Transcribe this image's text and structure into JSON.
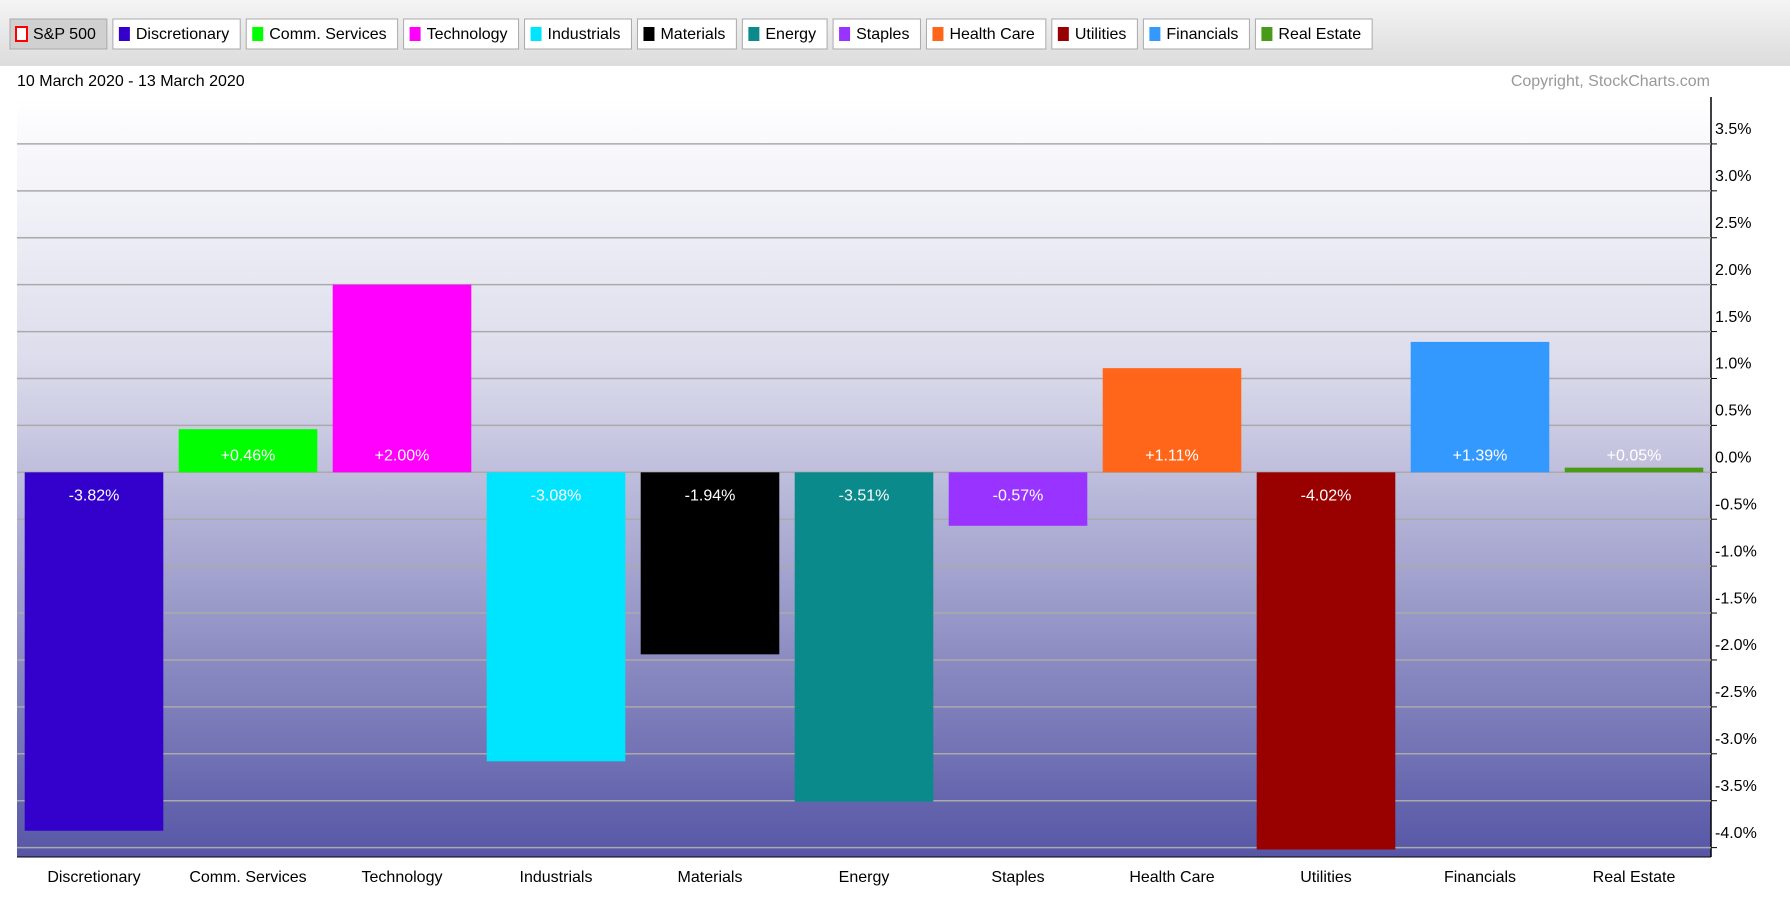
{
  "chart_data": {
    "type": "bar",
    "subtitle": "10 March 2020 - 13 March 2020",
    "annotation": "Copyright, StockCharts.com",
    "legend": [
      {
        "name": "S&P 500",
        "color": "#ff0000"
      },
      {
        "name": "Discretionary",
        "color": "#3300cc"
      },
      {
        "name": "Comm. Services",
        "color": "#00ff00"
      },
      {
        "name": "Technology",
        "color": "#ff00ff"
      },
      {
        "name": "Industrials",
        "color": "#00e5ff"
      },
      {
        "name": "Materials",
        "color": "#000000"
      },
      {
        "name": "Energy",
        "color": "#0a8a8a"
      },
      {
        "name": "Staples",
        "color": "#9933ff"
      },
      {
        "name": "Health Care",
        "color": "#ff6619"
      },
      {
        "name": "Utilities",
        "color": "#990000"
      },
      {
        "name": "Financials",
        "color": "#3399ff"
      },
      {
        "name": "Real Estate",
        "color": "#4a9a1a"
      }
    ],
    "categories": [
      "Discretionary",
      "Comm. Services",
      "Technology",
      "Industrials",
      "Materials",
      "Energy",
      "Staples",
      "Health Care",
      "Utilities",
      "Financials",
      "Real Estate"
    ],
    "values": [
      -3.82,
      0.46,
      2.0,
      -3.08,
      -1.94,
      -3.51,
      -0.57,
      1.11,
      -4.02,
      1.39,
      0.05
    ],
    "value_labels": [
      "-3.82%",
      "+0.46%",
      "+2.00%",
      "-3.08%",
      "-1.94%",
      "-3.51%",
      "-0.57%",
      "+1.11%",
      "-4.02%",
      "+1.39%",
      "+0.05%"
    ],
    "colors": [
      "#3300cc",
      "#00ff00",
      "#ff00ff",
      "#00e5ff",
      "#000000",
      "#0a8a8a",
      "#9933ff",
      "#ff6619",
      "#990000",
      "#3399ff",
      "#4a9a1a"
    ],
    "ylim": [
      -4.1,
      4.0
    ],
    "yticks": [
      {
        "value": 3.5,
        "label": "3.5%"
      },
      {
        "value": 3.0,
        "label": "3.0%"
      },
      {
        "value": 2.5,
        "label": "2.5%"
      },
      {
        "value": 2.0,
        "label": "2.0%"
      },
      {
        "value": 1.5,
        "label": "1.5%"
      },
      {
        "value": 1.0,
        "label": "1.0%"
      },
      {
        "value": 0.5,
        "label": "0.5%"
      },
      {
        "value": 0.0,
        "label": "0.0%"
      },
      {
        "value": -0.5,
        "label": "-0.5%"
      },
      {
        "value": -1.0,
        "label": "-1.0%"
      },
      {
        "value": -1.5,
        "label": "-1.5%"
      },
      {
        "value": -2.0,
        "label": "-2.0%"
      },
      {
        "value": -2.5,
        "label": "-2.5%"
      },
      {
        "value": -3.0,
        "label": "-3.0%"
      },
      {
        "value": -3.5,
        "label": "-3.5%"
      },
      {
        "value": -4.0,
        "label": "-4.0%"
      }
    ],
    "grid": true
  }
}
